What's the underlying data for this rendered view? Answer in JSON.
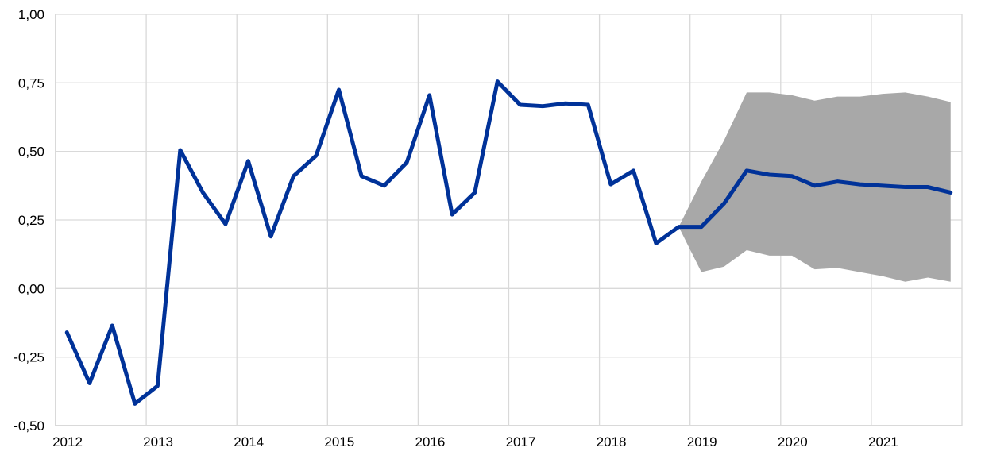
{
  "chart_data": {
    "type": "line",
    "title": "",
    "xlabel": "",
    "ylabel": "",
    "ylim": [
      -0.5,
      1.0
    ],
    "yticks": [
      -0.5,
      -0.25,
      0.0,
      0.25,
      0.5,
      0.75,
      1.0
    ],
    "ytick_labels": [
      "-0,50",
      "-0,25",
      "0,00",
      "0,25",
      "0,50",
      "0,75",
      "1,00"
    ],
    "xtick_labels": [
      "2012",
      "2013",
      "2014",
      "2015",
      "2016",
      "2017",
      "2018",
      "2019",
      "2020",
      "2021"
    ],
    "xlim": [
      "2012Q1",
      "2021Q4"
    ],
    "grid": true,
    "legend": "none",
    "colors": {
      "line": "#003299",
      "band": "#a8a8a8",
      "grid": "#d9d9d9"
    },
    "series": [
      {
        "type": "line",
        "x": [
          "2012Q1",
          "2012Q2",
          "2012Q3",
          "2012Q4",
          "2013Q1",
          "2013Q2",
          "2013Q3",
          "2013Q4",
          "2014Q1",
          "2014Q2",
          "2014Q3",
          "2014Q4",
          "2015Q1",
          "2015Q2",
          "2015Q3",
          "2015Q4",
          "2016Q1",
          "2016Q2",
          "2016Q3",
          "2016Q4",
          "2017Q1",
          "2017Q2",
          "2017Q3",
          "2017Q4",
          "2018Q1",
          "2018Q2",
          "2018Q3",
          "2018Q4",
          "2019Q1",
          "2019Q2",
          "2019Q3",
          "2019Q4",
          "2020Q1",
          "2020Q2",
          "2020Q3",
          "2020Q4",
          "2021Q1",
          "2021Q2",
          "2021Q3",
          "2021Q4"
        ],
        "values": [
          -0.16,
          -0.345,
          -0.135,
          -0.42,
          -0.355,
          0.505,
          0.35,
          0.235,
          0.465,
          0.19,
          0.41,
          0.485,
          0.725,
          0.41,
          0.375,
          0.46,
          0.705,
          0.27,
          0.35,
          0.755,
          0.67,
          0.665,
          0.675,
          0.67,
          0.38,
          0.43,
          0.165,
          0.225,
          0.225,
          0.31,
          0.43,
          0.415,
          0.41,
          0.375,
          0.39,
          0.38,
          0.375,
          0.37,
          0.37,
          0.35
        ]
      },
      {
        "type": "band",
        "x": [
          "2018Q4",
          "2019Q1",
          "2019Q2",
          "2019Q3",
          "2019Q4",
          "2020Q1",
          "2020Q2",
          "2020Q3",
          "2020Q4",
          "2021Q1",
          "2021Q2",
          "2021Q3",
          "2021Q4"
        ],
        "upper": [
          0.225,
          0.39,
          0.54,
          0.715,
          0.715,
          0.705,
          0.685,
          0.7,
          0.7,
          0.71,
          0.715,
          0.7,
          0.68
        ],
        "lower": [
          0.225,
          0.06,
          0.08,
          0.14,
          0.12,
          0.12,
          0.07,
          0.075,
          0.06,
          0.045,
          0.025,
          0.04,
          0.025
        ]
      }
    ]
  }
}
